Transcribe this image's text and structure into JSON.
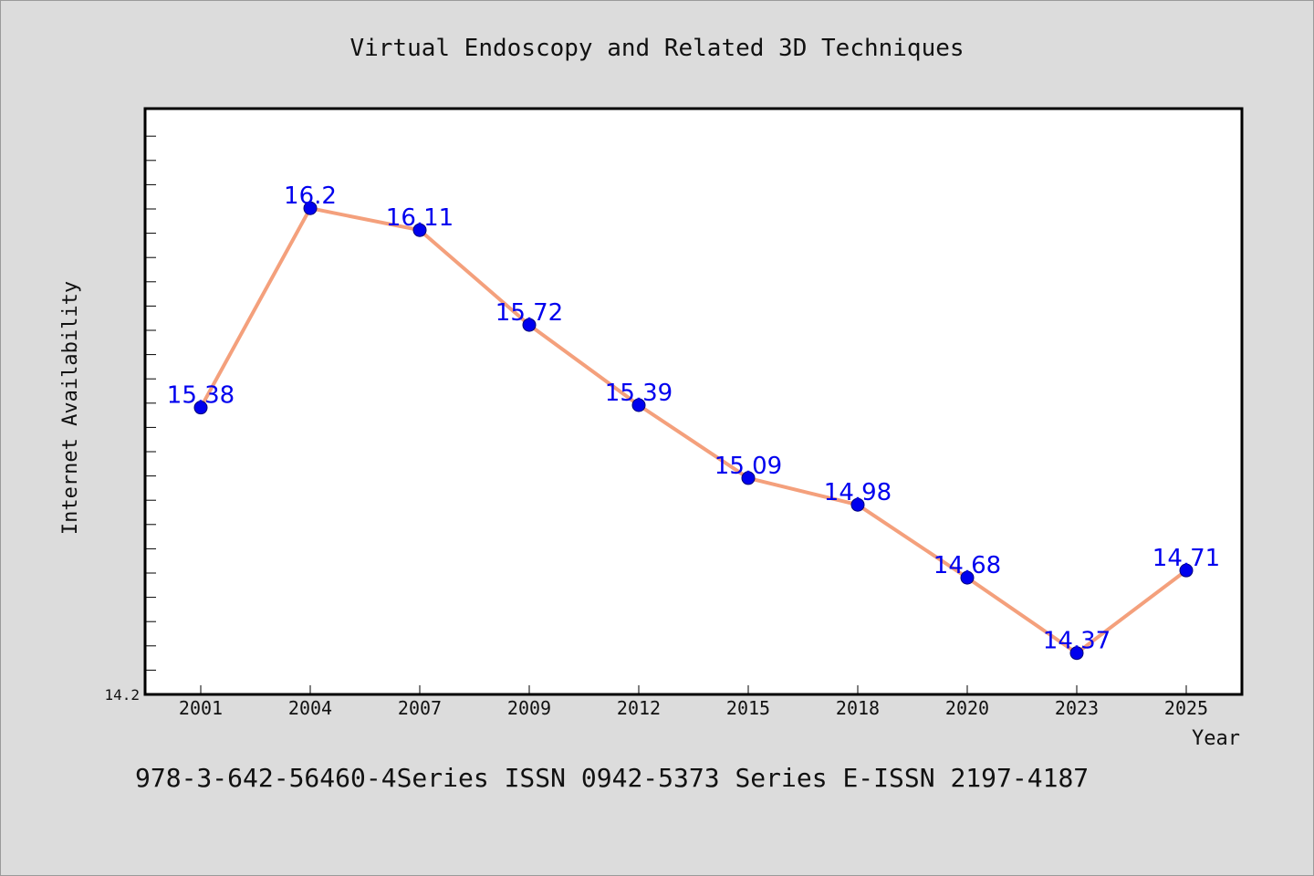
{
  "chart_data": {
    "type": "line",
    "title": "Virtual Endoscopy and Related 3D Techniques",
    "xlabel": "Year",
    "ylabel": "Internet Availability",
    "categories": [
      "2001",
      "2004",
      "2007",
      "2009",
      "2012",
      "2015",
      "2018",
      "2020",
      "2023",
      "2025"
    ],
    "series": [
      {
        "values": [
          15.38,
          16.2,
          16.11,
          15.72,
          15.39,
          15.09,
          14.98,
          14.68,
          14.37,
          14.71
        ]
      }
    ],
    "ylim": [
      14.2,
      16.61
    ],
    "ytick_labels": [
      "14.2"
    ],
    "grid": false,
    "colors": {
      "line": "#f4a07c",
      "marker": "#0000ee",
      "label": "#0000ee"
    }
  },
  "footer": {
    "text": "978-3-642-56460-4Series ISSN 0942-5373 Series E-ISSN 2197-4187"
  }
}
